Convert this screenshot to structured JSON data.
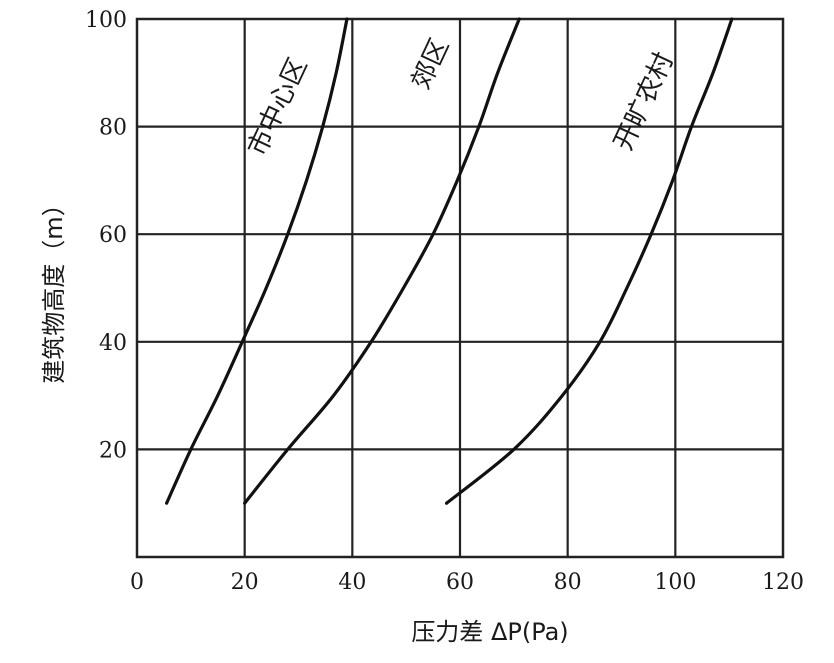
{
  "chart_data": {
    "type": "line",
    "title": "",
    "xlabel": "压力差 ΔP(Pa)",
    "ylabel": "建筑物高度（m）",
    "xlim": [
      0,
      120
    ],
    "ylim": [
      0,
      100
    ],
    "x_ticks": [
      "0",
      "20",
      "40",
      "60",
      "80",
      "100",
      "120"
    ],
    "y_ticks": [
      "20",
      "40",
      "60",
      "80",
      "100"
    ],
    "grid": true,
    "series": [
      {
        "name": "市中心区",
        "points": [
          [
            5.5,
            10
          ],
          [
            10,
            20
          ],
          [
            15,
            30
          ],
          [
            20,
            41
          ],
          [
            24,
            50
          ],
          [
            28,
            60
          ],
          [
            31.5,
            70
          ],
          [
            34.5,
            80
          ],
          [
            37,
            90
          ],
          [
            39,
            100
          ]
        ]
      },
      {
        "name": "郊区",
        "points": [
          [
            20,
            10
          ],
          [
            28,
            20
          ],
          [
            36.5,
            30
          ],
          [
            43.5,
            40
          ],
          [
            49.5,
            50
          ],
          [
            55,
            60
          ],
          [
            59.5,
            70
          ],
          [
            63.5,
            80
          ],
          [
            67,
            90
          ],
          [
            71,
            100
          ]
        ]
      },
      {
        "name": "开旷农村",
        "points": [
          [
            57.5,
            10
          ],
          [
            70,
            20
          ],
          [
            79,
            30
          ],
          [
            86,
            40
          ],
          [
            91,
            50
          ],
          [
            95.5,
            60
          ],
          [
            99.5,
            70
          ],
          [
            103,
            80
          ],
          [
            107,
            90
          ],
          [
            110.5,
            100
          ]
        ]
      }
    ]
  }
}
